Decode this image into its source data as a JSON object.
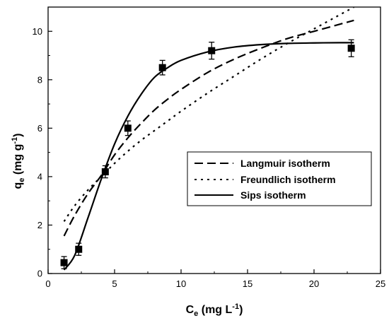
{
  "chart_data": {
    "type": "scatter",
    "xlabel": "C",
    "xlabel_sub": "e",
    "xlabel_unit": "(mg L",
    "xlabel_sup": "-1",
    "xlabel_end": ")",
    "ylabel": "q",
    "ylabel_sub": "e",
    "ylabel_unit": "(mg g",
    "ylabel_sup": "-1",
    "ylabel_end": ")",
    "xlim": [
      0,
      25
    ],
    "ylim": [
      0,
      11
    ],
    "xticks": [
      0,
      5,
      10,
      15,
      20,
      25
    ],
    "yticks": [
      0,
      2,
      4,
      6,
      8,
      10
    ],
    "grid": false,
    "legend_position": "right-middle",
    "experimental": {
      "x": [
        1.2,
        2.3,
        4.3,
        6.0,
        8.6,
        12.3,
        22.8
      ],
      "y": [
        0.45,
        1.0,
        4.2,
        6.0,
        8.5,
        9.2,
        9.3
      ],
      "err": [
        0.25,
        0.25,
        0.25,
        0.3,
        0.3,
        0.35,
        0.35
      ]
    },
    "series": [
      {
        "name": "Langmuir isotherm",
        "style": "dashed",
        "x": [
          1.2,
          2,
          3,
          4,
          5,
          6,
          7,
          8,
          9,
          10,
          12,
          14,
          16,
          18,
          20,
          22,
          23
        ],
        "y": [
          1.55,
          2.4,
          3.3,
          4.05,
          4.9,
          5.6,
          6.2,
          6.75,
          7.2,
          7.6,
          8.3,
          8.85,
          9.3,
          9.7,
          10.0,
          10.3,
          10.45
        ]
      },
      {
        "name": "Freundlich isotherm",
        "style": "dotted",
        "x": [
          1.2,
          2,
          3,
          4,
          5,
          6,
          7,
          8,
          9,
          10,
          12,
          14,
          16,
          18,
          20,
          22,
          23
        ],
        "y": [
          2.15,
          2.8,
          3.45,
          4.0,
          4.55,
          5.05,
          5.5,
          5.9,
          6.3,
          6.7,
          7.45,
          8.15,
          8.85,
          9.5,
          10.1,
          10.7,
          11.0
        ]
      },
      {
        "name": "Sips isotherm",
        "style": "solid",
        "x": [
          1.2,
          2,
          3,
          4,
          5,
          6,
          7,
          8,
          9,
          10,
          12,
          14,
          16,
          18,
          20,
          22,
          23
        ],
        "y": [
          0.15,
          0.75,
          2.3,
          3.9,
          5.35,
          6.5,
          7.4,
          8.1,
          8.5,
          8.8,
          9.15,
          9.35,
          9.45,
          9.5,
          9.52,
          9.53,
          9.53
        ]
      }
    ]
  }
}
